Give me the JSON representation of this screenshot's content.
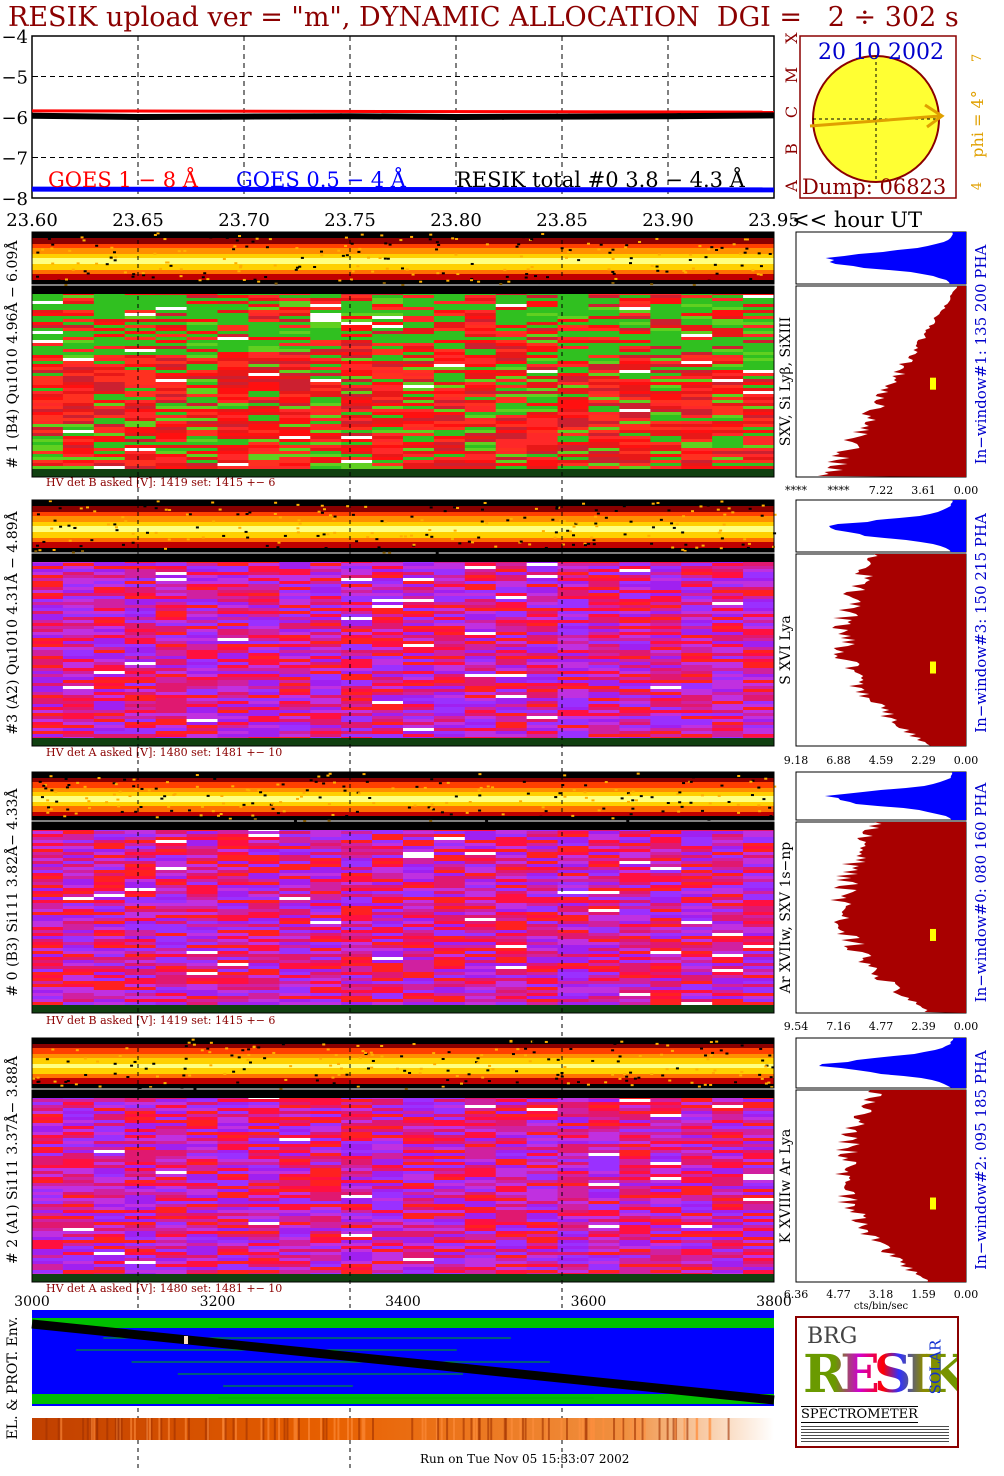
{
  "title": "RESIK upload ver = \"m\", DYNAMIC ALLOCATION  DGI =   2 ÷ 302 s",
  "footer": "Run on Tue Nov 05 15:33:07 2002",
  "colors": {
    "title": "#8b0000",
    "goes1": "#ff0000",
    "goes05": "#0000ff",
    "resik": "#000000",
    "sun": "#ffff33",
    "orange": "#e0a000",
    "histogram_red": "#a80000",
    "histogram_blue": "#0000ff",
    "env_blue": "#0000ff",
    "env_green": "#00c000"
  },
  "lightcurve": {
    "yticks": [
      "−4",
      "−5",
      "−6",
      "−7",
      "−8"
    ],
    "ylim": [
      -8,
      -4
    ],
    "legend": {
      "goes1": "GOES 1 − 8 Å",
      "goes05": "GOES 0.5 − 4 Å",
      "resik": "RESIK total #0  3.8 − 4.3 Å"
    }
  },
  "time_axis": {
    "ticks": [
      "23.60",
      "23.65",
      "23.70",
      "23.75",
      "23.80",
      "23.85",
      "23.90",
      "23.95"
    ],
    "unit": "<< hour UT"
  },
  "sun_box": {
    "date": "20 10 2002",
    "dump": "Dump: 06823",
    "side_letters": [
      "A",
      "B",
      "C",
      "M",
      "X"
    ],
    "phi_label": "phi =  4°",
    "phi_top": "7",
    "phi_bottom": "4"
  },
  "channels": [
    {
      "left_label": "# 1 (B4) Qu1010 4.96Å − 6.09Å",
      "lines_label": "SXV, Si Lyβ, SiXIII",
      "window_label": "In−window#1:  135 200 PHA",
      "hv": "HV det B asked [V]:  1419 set:  1415  +−    6",
      "xticks": [
        "****",
        "****",
        "7.22",
        "3.61",
        "0.00"
      ],
      "theme": "red"
    },
    {
      "left_label": "#3 (A2) Qu1010  4.31Å − 4.89Å",
      "lines_label": "S XVI Lya",
      "window_label": "In−window#3:  150 215 PHA",
      "hv": "HV det A asked [V]:  1480 set:  1481  +−    10",
      "xticks": [
        "9.18",
        "6.88",
        "4.59",
        "2.29",
        "0.00"
      ],
      "theme": "purple"
    },
    {
      "left_label": "# 0 (B3) Si111  3.82Å− 4.33Å",
      "lines_label": "Ar XVIIw, SXV 1s−np",
      "window_label": "In−window#0:  080 160 PHA",
      "hv": "HV det B asked [V]:  1419 set:  1415  +−    6",
      "xticks": [
        "9.54",
        "7.16",
        "4.77",
        "2.39",
        "0.00"
      ],
      "theme": "purple"
    },
    {
      "left_label": "# 2 (A1) Si111  3.37Å− 3.88Å",
      "lines_label": "K XVIIIw  Ar Lya",
      "window_label": "In−window#2:  095 185 PHA",
      "hv": "HV det A asked [V]:  1480 set:  1481  +−    10",
      "xticks": [
        "6.36",
        "4.77",
        "3.18",
        "1.59",
        "0.00"
      ],
      "xlabel": "cts/bin/sec",
      "theme": "purple"
    }
  ],
  "env": {
    "label": "EL. & PROT. Env.",
    "xticks": [
      "3000",
      "3200",
      "3400",
      "3600",
      "3800"
    ]
  },
  "logo": {
    "letters": "RESIK",
    "top": "BRG",
    "side": "SOLAR",
    "bottom": "SPECTROMETER"
  },
  "chart_data": {
    "type": "line",
    "title": "RESIK upload ver = \"m\", DYNAMIC ALLOCATION  DGI =   2 ÷ 302 s",
    "xlabel": "<< hour UT",
    "xlim": [
      23.6,
      23.95
    ],
    "ylim": [
      -8,
      -4
    ],
    "series": [
      {
        "name": "GOES 1 − 8 Å",
        "x": [
          23.6,
          23.95
        ],
        "values": [
          -5.85,
          -5.88
        ]
      },
      {
        "name": "GOES 0.5 − 4 Å",
        "x": [
          23.6,
          23.95
        ],
        "values": [
          -7.78,
          -7.8
        ]
      },
      {
        "name": "RESIK total #0  3.8 − 4.3 Å",
        "x": [
          23.6,
          23.65,
          23.7,
          23.75,
          23.8,
          23.85,
          23.9,
          23.95
        ],
        "values": [
          -5.97,
          -6.0,
          -5.99,
          -5.98,
          -6.0,
          -5.99,
          -5.98,
          -5.96
        ]
      }
    ]
  }
}
